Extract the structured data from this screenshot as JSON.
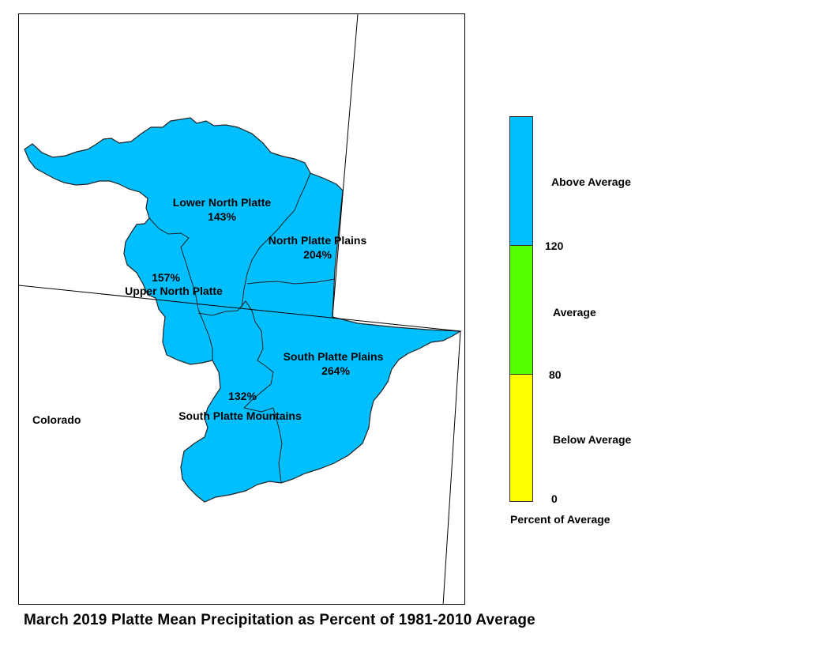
{
  "map": {
    "state_label": "Colorado",
    "fill_color": "#00bfff",
    "basins": [
      {
        "name": "Lower North Platte",
        "percent": "143%"
      },
      {
        "name": "North Platte Plains",
        "percent": "204%"
      },
      {
        "name": "Upper North Platte",
        "percent": "157%"
      },
      {
        "name": "South Platte Plains",
        "percent": "264%"
      },
      {
        "name": "South Platte Mountains",
        "percent": "132%"
      }
    ]
  },
  "legend": {
    "title": "Percent of Average",
    "categories": [
      {
        "label": "Above Average",
        "color": "#00bfff"
      },
      {
        "label": "Average",
        "color": "#55ff00"
      },
      {
        "label": "Below Average",
        "color": "#ffff00"
      }
    ],
    "ticks": [
      "120",
      "80",
      "0"
    ]
  },
  "caption": "March 2019 Platte Mean Precipitation as Percent of 1981-2010 Average"
}
